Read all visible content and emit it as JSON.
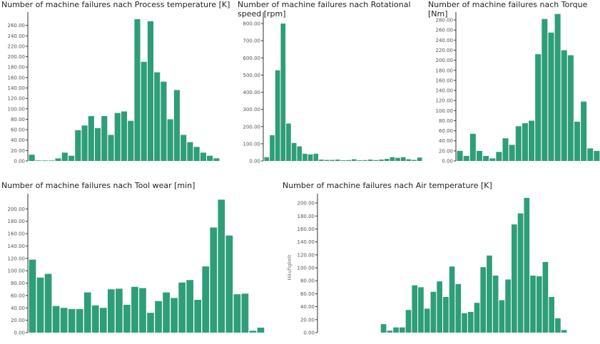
{
  "colors": {
    "bar": "#2e9e78",
    "axis": "#333333",
    "text": "#222222"
  },
  "chart_data": [
    {
      "type": "bar",
      "title": "Number of machine failures nach Process temperature [K]",
      "ylabel": "",
      "ylim": [
        0,
        280
      ],
      "yticks": [
        "0.00",
        "20.00",
        "40.00",
        "60.00",
        "80.00",
        "100.00",
        "120.00",
        "140.00",
        "160.00",
        "180.00",
        "200.00",
        "220.00",
        "240.00",
        "260.00"
      ],
      "values": [
        12,
        1,
        1,
        1,
        5,
        16,
        10,
        59,
        68,
        86,
        63,
        86,
        50,
        92,
        95,
        77,
        272,
        190,
        268,
        170,
        152,
        80,
        136,
        50,
        36,
        27,
        16,
        10,
        5
      ]
    },
    {
      "type": "bar",
      "title": "Number of machine failures nach Rotational speed [rpm]",
      "ylabel": "",
      "ylim": [
        0,
        850
      ],
      "yticks": [
        "0.00",
        "100.00",
        "200.00",
        "300.00",
        "400.00",
        "500.00",
        "600.00",
        "700.00",
        "800.00"
      ],
      "values": [
        22,
        150,
        528,
        800,
        218,
        105,
        85,
        42,
        38,
        42,
        8,
        6,
        6,
        8,
        4,
        5,
        10,
        4,
        5,
        8,
        5,
        8,
        12,
        22,
        18,
        22,
        10,
        6,
        20
      ]
    },
    {
      "type": "bar",
      "title": "Number of machine failures nach Torque [Nm]",
      "ylabel": "",
      "ylim": [
        0,
        290
      ],
      "yticks": [
        "0.00",
        "20.00",
        "40.00",
        "60.00",
        "80.00",
        "100.00",
        "120.00",
        "140.00",
        "160.00",
        "180.00",
        "200.00",
        "220.00",
        "240.00",
        "260.00",
        "280.00"
      ],
      "values": [
        20,
        10,
        54,
        20,
        10,
        5,
        18,
        45,
        32,
        69,
        75,
        80,
        212,
        282,
        255,
        292,
        220,
        210,
        78,
        118,
        25,
        20
      ]
    },
    {
      "type": "bar",
      "title": "Number of machine failures nach Tool wear [min]",
      "ylabel": "",
      "ylim": [
        0,
        220
      ],
      "yticks": [
        "0.00",
        "20.00",
        "40.00",
        "60.00",
        "80.00",
        "100.00",
        "120.00",
        "140.00",
        "160.00",
        "180.00",
        "200.00"
      ],
      "values": [
        118,
        89,
        95,
        43,
        40,
        38,
        38,
        65,
        44,
        40,
        70,
        71,
        45,
        74,
        72,
        32,
        51,
        65,
        56,
        81,
        85,
        53,
        107,
        170,
        215,
        157,
        62,
        63,
        3,
        8
      ]
    },
    {
      "type": "bar",
      "title": "Number of machine failures nach Air temperature [K]",
      "ylabel": "Häufigkeit",
      "ylim": [
        0,
        210
      ],
      "yticks": [
        "0.00",
        "20.00",
        "40.00",
        "60.00",
        "80.00",
        "100.00",
        "120.00",
        "140.00",
        "160.00",
        "180.00",
        "200.00"
      ],
      "values": [
        0,
        0,
        0,
        0,
        0,
        0,
        0,
        0,
        0,
        0,
        13,
        3,
        8,
        8,
        35,
        73,
        70,
        37,
        63,
        79,
        55,
        102,
        75,
        30,
        32,
        46,
        101,
        119,
        88,
        50,
        82,
        167,
        184,
        208,
        88,
        87,
        109,
        55,
        22,
        4
      ]
    }
  ]
}
